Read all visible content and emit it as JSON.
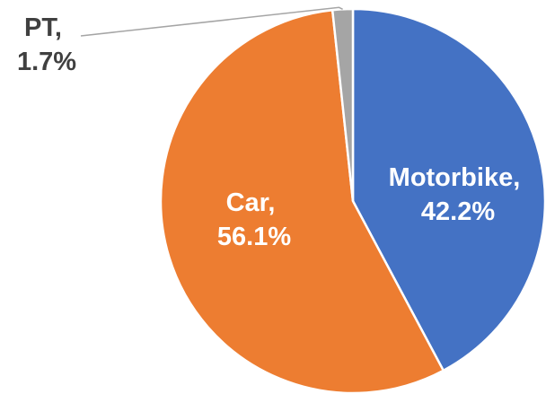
{
  "chart_data": {
    "type": "pie",
    "values": [
      42.2,
      56.1,
      1.7
    ],
    "value_labels": [
      "Motorbike, 42.2%",
      "Car, 56.1%",
      "PT, 1.7%"
    ],
    "colors": [
      "#4472c4",
      "#ed7d31",
      "#a5a5a5"
    ]
  }
}
